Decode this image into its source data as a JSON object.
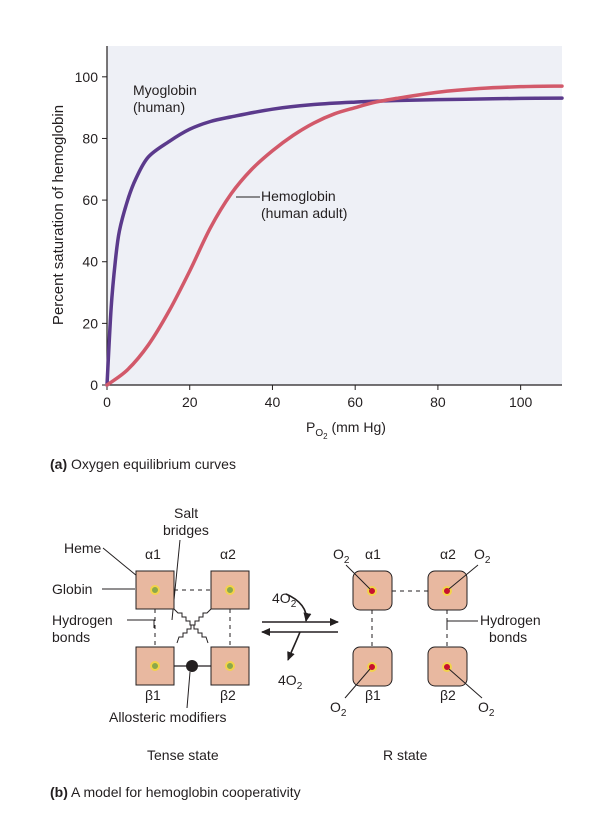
{
  "panel_a": {
    "caption_letter": "(a)",
    "caption_text": " Oxygen equilibrium curves",
    "ylabel": "Percent saturation of hemoglobin",
    "xlabel_main": "P",
    "xlabel_sub1": "O",
    "xlabel_sub2": "2",
    "xlabel_unit": " (mm Hg)",
    "myoglobin_label_1": "Myoglobin",
    "myoglobin_label_2": "(human)",
    "hemoglobin_label_1": "Hemoglobin",
    "hemoglobin_label_2": "(human adult)"
  },
  "chart_data": {
    "type": "line",
    "xlabel": "PO2 (mm Hg)",
    "ylabel": "Percent saturation of hemoglobin",
    "xlim": [
      0,
      110
    ],
    "ylim": [
      0,
      110
    ],
    "xticks": [
      0,
      20,
      40,
      60,
      80,
      100
    ],
    "yticks": [
      0,
      20,
      40,
      60,
      80,
      100
    ],
    "grid": false,
    "series": [
      {
        "name": "Myoglobin (human)",
        "color": "#5b3a8c",
        "x": [
          0,
          1,
          2,
          3,
          5,
          7,
          10,
          15,
          20,
          25,
          30,
          40,
          50,
          60,
          70,
          80,
          90,
          100,
          110
        ],
        "y": [
          0,
          25,
          40,
          50,
          60,
          67,
          74,
          79,
          83,
          85.5,
          87,
          89.5,
          91,
          91.8,
          92.3,
          92.6,
          92.8,
          93,
          93.1
        ]
      },
      {
        "name": "Hemoglobin (human adult)",
        "color": "#d2596a",
        "x": [
          0,
          5,
          10,
          15,
          20,
          25,
          30,
          35,
          40,
          45,
          50,
          55,
          60,
          65,
          70,
          80,
          90,
          100,
          110
        ],
        "y": [
          0,
          5,
          13,
          24,
          37,
          51,
          62,
          70,
          76,
          81,
          85,
          88,
          90,
          91.8,
          93,
          95,
          96.2,
          96.8,
          97
        ]
      }
    ]
  },
  "panel_b": {
    "caption_letter": "(b)",
    "caption_text": " A model for hemoglobin cooperativity",
    "salt_1": "Salt",
    "salt_2": "bridges",
    "heme": "Heme",
    "globin": "Globin",
    "hbonds_left_1": "Hydrogen",
    "hbonds_left_2": "bonds",
    "hbonds_right_1": "Hydrogen",
    "hbonds_right_2": "bonds",
    "alpha1": "α1",
    "alpha2": "α2",
    "beta1": "β1",
    "beta2": "β2",
    "o2_main": "O",
    "o2_sub": "2",
    "four_o2_main": "4O",
    "four_o2_sub": "2",
    "allosteric": "Allosteric modifiers",
    "tense_state": "Tense state",
    "r_state": "R state",
    "colors": {
      "subunit": "#e8b8a0",
      "heme_ring": "#f2d34a",
      "heme_dot_tense": "#8aa84a",
      "heme_dot_r": "#c8102e"
    }
  }
}
